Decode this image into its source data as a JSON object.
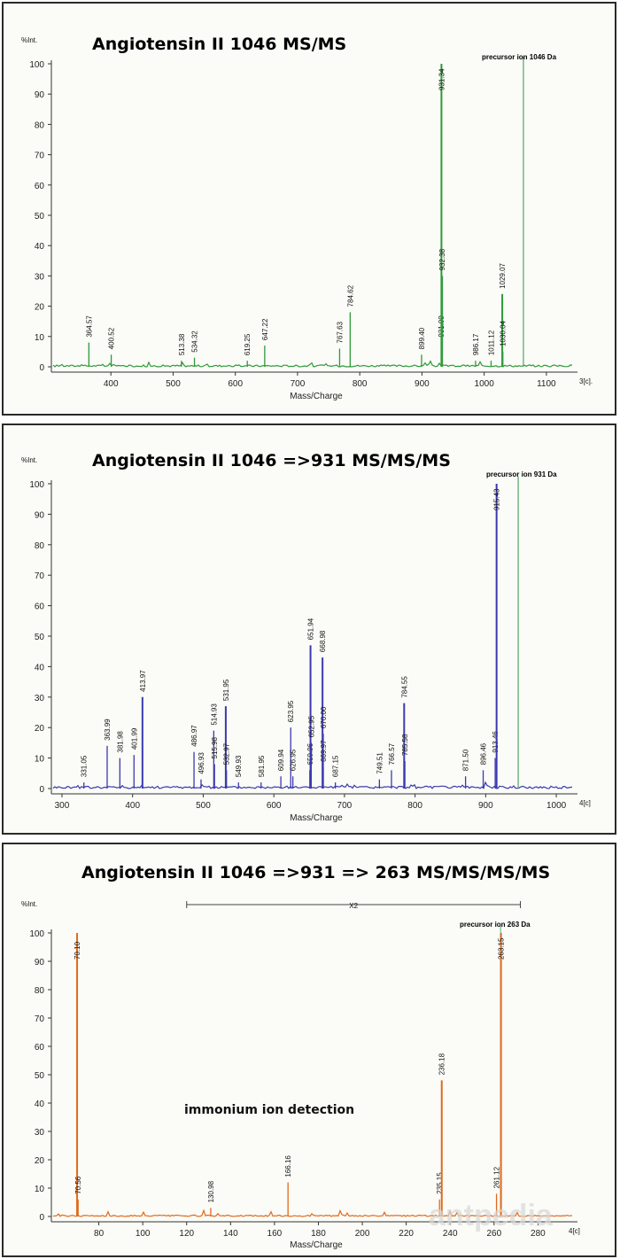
{
  "chart_data": [
    {
      "type": "line",
      "title": "Angiotensin II 1046 MS/MS",
      "xlabel": "Mass/Charge",
      "ylabel": "%Int.",
      "xlim": [
        310,
        1150
      ],
      "ylim": [
        0,
        100
      ],
      "x_ticks": [
        400,
        500,
        600,
        700,
        800,
        900,
        1000,
        1100
      ],
      "y_ticks": [
        0,
        10,
        20,
        30,
        40,
        50,
        60,
        70,
        80,
        90,
        100
      ],
      "color": "#2e9a3a",
      "precursor": {
        "label": "precursor ion 1046 Da",
        "mz": 1046
      },
      "corner_label": "3[c].",
      "peaks": [
        {
          "mz": 364.57,
          "y": 8,
          "label": "364.57"
        },
        {
          "mz": 400.52,
          "y": 4,
          "label": "400.52"
        },
        {
          "mz": 513.38,
          "y": 2,
          "label": "513.38"
        },
        {
          "mz": 534.32,
          "y": 3,
          "label": "534.32"
        },
        {
          "mz": 619.25,
          "y": 2,
          "label": "619.25"
        },
        {
          "mz": 647.22,
          "y": 7,
          "label": "647.22"
        },
        {
          "mz": 767.63,
          "y": 6,
          "label": "767.63"
        },
        {
          "mz": 784.62,
          "y": 18,
          "label": "784.62"
        },
        {
          "mz": 899.4,
          "y": 4,
          "label": "899.40"
        },
        {
          "mz": 931.09,
          "y": 8,
          "label": "931.09"
        },
        {
          "mz": 931.34,
          "y": 100,
          "label": "931.34"
        },
        {
          "mz": 932.38,
          "y": 30,
          "label": "932.38"
        },
        {
          "mz": 986.17,
          "y": 2,
          "label": "986.17"
        },
        {
          "mz": 1011.12,
          "y": 2,
          "label": "1011.12"
        },
        {
          "mz": 1029.07,
          "y": 24,
          "label": "1029.07"
        },
        {
          "mz": 1030.04,
          "y": 5,
          "label": "1030.04"
        }
      ]
    },
    {
      "type": "line",
      "title": "Angiotensin II 1046 =>931 MS/MS/MS",
      "xlabel": "Mass/Charge",
      "ylabel": "%Int.",
      "xlim": [
        290,
        1030
      ],
      "ylim": [
        0,
        100
      ],
      "x_ticks": [
        300,
        400,
        500,
        600,
        700,
        800,
        900,
        1000
      ],
      "y_ticks": [
        0,
        10,
        20,
        30,
        40,
        50,
        60,
        70,
        80,
        90,
        100
      ],
      "color": "#3a3ab0",
      "precursor": {
        "label": "precursor ion 931 Da",
        "mz": 931
      },
      "corner_label": "4[c]",
      "peaks": [
        {
          "mz": 331.05,
          "y": 2,
          "label": "331.05"
        },
        {
          "mz": 363.99,
          "y": 14,
          "label": "363.99"
        },
        {
          "mz": 381.98,
          "y": 10,
          "label": "381.98"
        },
        {
          "mz": 401.99,
          "y": 11,
          "label": "401.99"
        },
        {
          "mz": 413.97,
          "y": 30,
          "label": "413.97"
        },
        {
          "mz": 486.97,
          "y": 12,
          "label": "486.97"
        },
        {
          "mz": 496.93,
          "y": 3,
          "label": "496.93"
        },
        {
          "mz": 514.93,
          "y": 19,
          "label": "514.93"
        },
        {
          "mz": 515.98,
          "y": 8,
          "label": "515.98"
        },
        {
          "mz": 531.95,
          "y": 27,
          "label": "531.95"
        },
        {
          "mz": 532.97,
          "y": 6,
          "label": "532.97"
        },
        {
          "mz": 549.93,
          "y": 2,
          "label": "549.93"
        },
        {
          "mz": 581.95,
          "y": 2,
          "label": "581.95"
        },
        {
          "mz": 609.94,
          "y": 4,
          "label": "609.94"
        },
        {
          "mz": 623.95,
          "y": 20,
          "label": "623.95"
        },
        {
          "mz": 626.95,
          "y": 4,
          "label": "626.95"
        },
        {
          "mz": 650.96,
          "y": 6,
          "label": "650.96"
        },
        {
          "mz": 651.94,
          "y": 47,
          "label": "651.94"
        },
        {
          "mz": 652.95,
          "y": 15,
          "label": "652.95"
        },
        {
          "mz": 668.98,
          "y": 43,
          "label": "668.98"
        },
        {
          "mz": 669.97,
          "y": 7,
          "label": "669.97"
        },
        {
          "mz": 670.0,
          "y": 18,
          "label": "670.00"
        },
        {
          "mz": 687.15,
          "y": 2,
          "label": "687.15"
        },
        {
          "mz": 749.51,
          "y": 3,
          "label": "749.51"
        },
        {
          "mz": 766.57,
          "y": 6,
          "label": "766.57"
        },
        {
          "mz": 784.55,
          "y": 28,
          "label": "784.55"
        },
        {
          "mz": 785.58,
          "y": 9,
          "label": "785.58"
        },
        {
          "mz": 871.5,
          "y": 4,
          "label": "871.50"
        },
        {
          "mz": 896.46,
          "y": 6,
          "label": "896.46"
        },
        {
          "mz": 913.46,
          "y": 10,
          "label": "913.46"
        },
        {
          "mz": 915.43,
          "y": 100,
          "label": "915.43"
        }
      ]
    },
    {
      "type": "line",
      "title": "Angiotensin II 1046 =>931 => 263 MS/MS/MS/MS",
      "xlabel": "Mass/Charge",
      "ylabel": "%Int.",
      "xlim": [
        60,
        298
      ],
      "ylim": [
        0,
        100
      ],
      "x_ticks": [
        80,
        100,
        120,
        140,
        160,
        180,
        200,
        220,
        240,
        260,
        280
      ],
      "y_ticks": [
        0,
        10,
        20,
        30,
        40,
        50,
        60,
        70,
        80,
        90,
        100
      ],
      "color": "#e06a1c",
      "precursor": {
        "label": "precursor ion 263 Da",
        "mz": 263
      },
      "zoom_label": "X2",
      "zoom_range": [
        120,
        272
      ],
      "annotation": "immonium ion detection",
      "corner_label": "4[c]",
      "peaks": [
        {
          "mz": 70.1,
          "y": 100,
          "label": "70.10"
        },
        {
          "mz": 70.56,
          "y": 6,
          "label": "70.56"
        },
        {
          "mz": 130.98,
          "y": 3,
          "label": "130.98"
        },
        {
          "mz": 166.16,
          "y": 12,
          "label": "166.16"
        },
        {
          "mz": 235.15,
          "y": 6,
          "label": "235.15"
        },
        {
          "mz": 236.18,
          "y": 48,
          "label": "236.18"
        },
        {
          "mz": 261.12,
          "y": 8,
          "label": "261.12"
        },
        {
          "mz": 263.15,
          "y": 100,
          "label": "263.15"
        }
      ]
    }
  ],
  "watermark": "antpedia"
}
